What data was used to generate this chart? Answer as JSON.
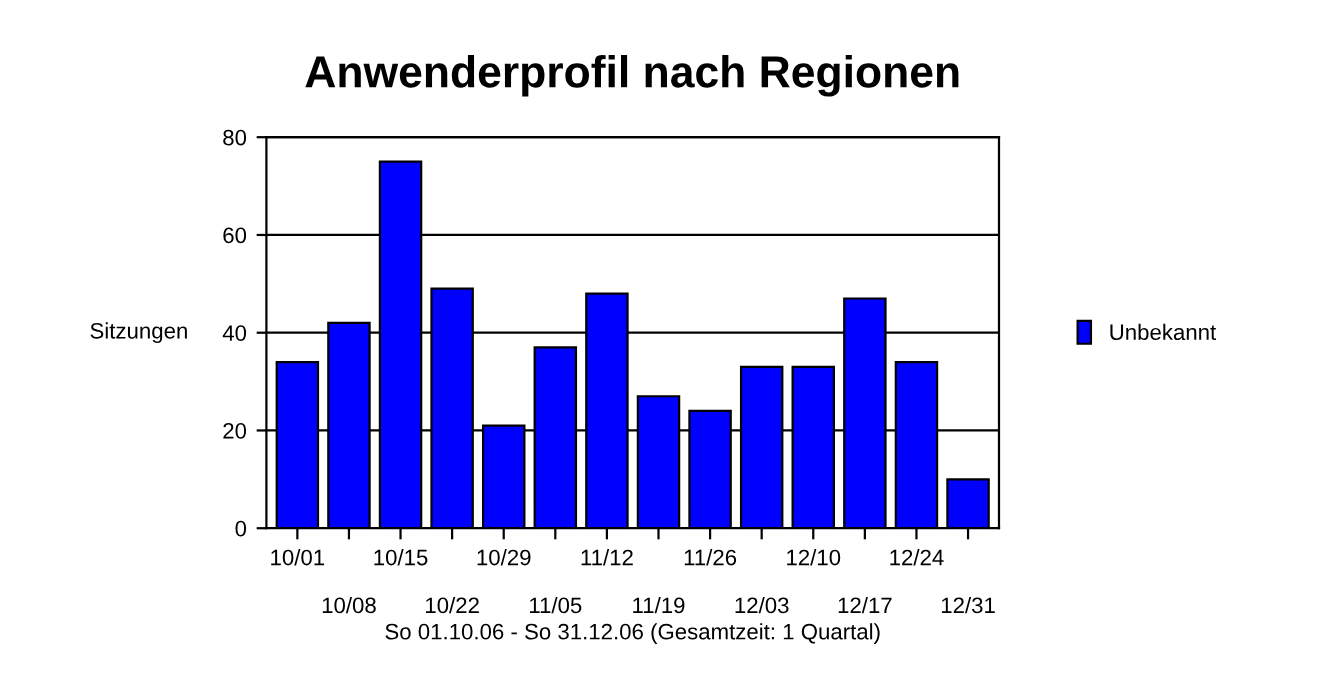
{
  "chart_data": {
    "type": "bar",
    "title": "Anwenderprofil nach Regionen",
    "ylabel": "Sitzungen",
    "xlabel": "So 01.10.06 - So 31.12.06 (Gesamtzeit: 1 Quartal)",
    "categories": [
      "10/01",
      "10/08",
      "10/15",
      "10/22",
      "10/29",
      "11/05",
      "11/12",
      "11/19",
      "11/26",
      "12/03",
      "12/10",
      "12/17",
      "12/24",
      "12/31"
    ],
    "series": [
      {
        "name": "Unbekannt",
        "color": "#0000ff",
        "values": [
          34,
          42,
          75,
          49,
          21,
          37,
          48,
          27,
          24,
          33,
          33,
          47,
          34,
          10
        ]
      }
    ],
    "ylim": [
      0,
      80
    ],
    "yticks": [
      0,
      20,
      40,
      60,
      80
    ],
    "grid": "y",
    "legend": "right"
  }
}
